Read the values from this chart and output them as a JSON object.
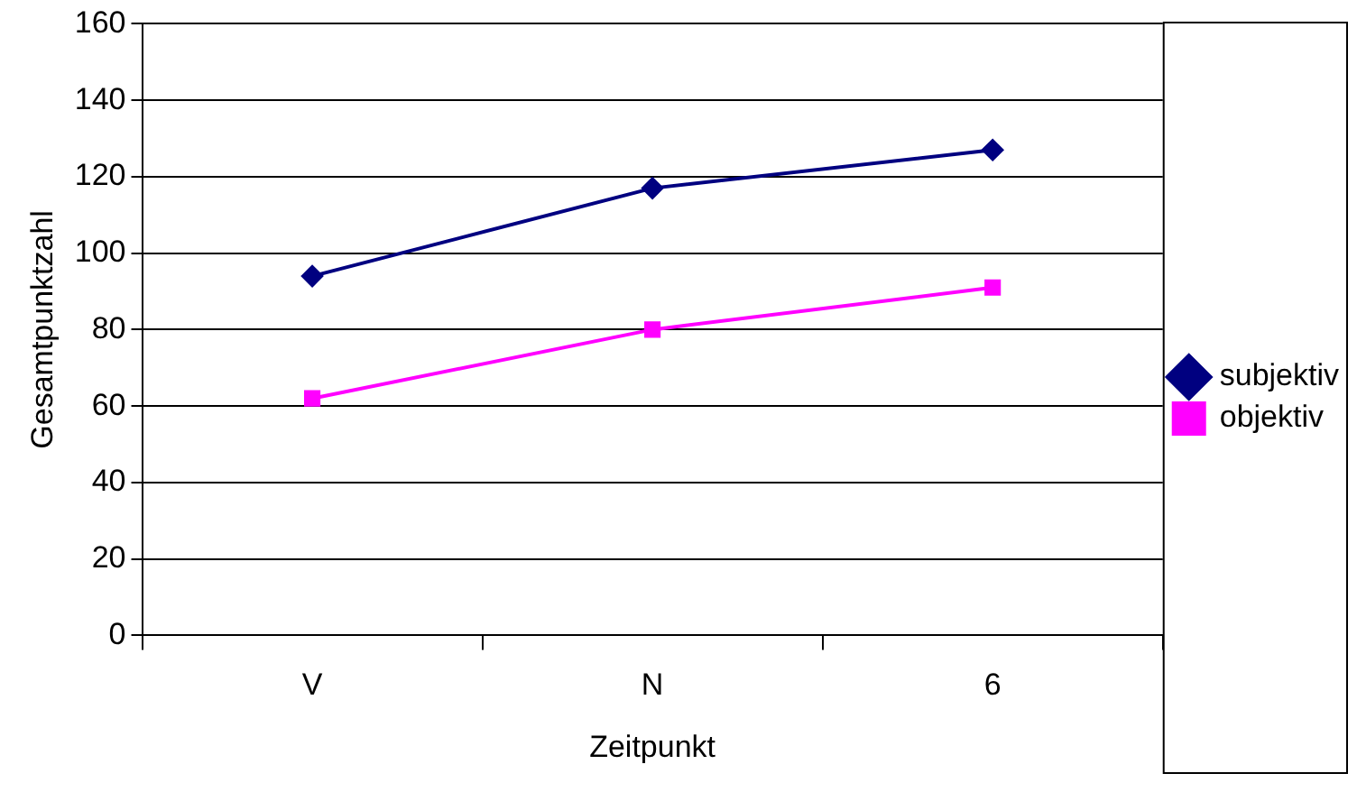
{
  "chart_data": {
    "type": "line",
    "xlabel": "Zeitpunkt",
    "ylabel": "Gesamtpunktzahl",
    "categories": [
      "V",
      "N",
      "6"
    ],
    "series": [
      {
        "name": "subjektiv",
        "color": "#000080",
        "marker": "diamond",
        "values": [
          94,
          117,
          127
        ]
      },
      {
        "name": "objektiv",
        "color": "#ff00ff",
        "marker": "square",
        "values": [
          62,
          80,
          91
        ]
      }
    ],
    "ylim": [
      0,
      160
    ],
    "yticks": [
      0,
      20,
      40,
      60,
      80,
      100,
      120,
      140,
      160
    ],
    "grid": "y",
    "legend": "right"
  }
}
